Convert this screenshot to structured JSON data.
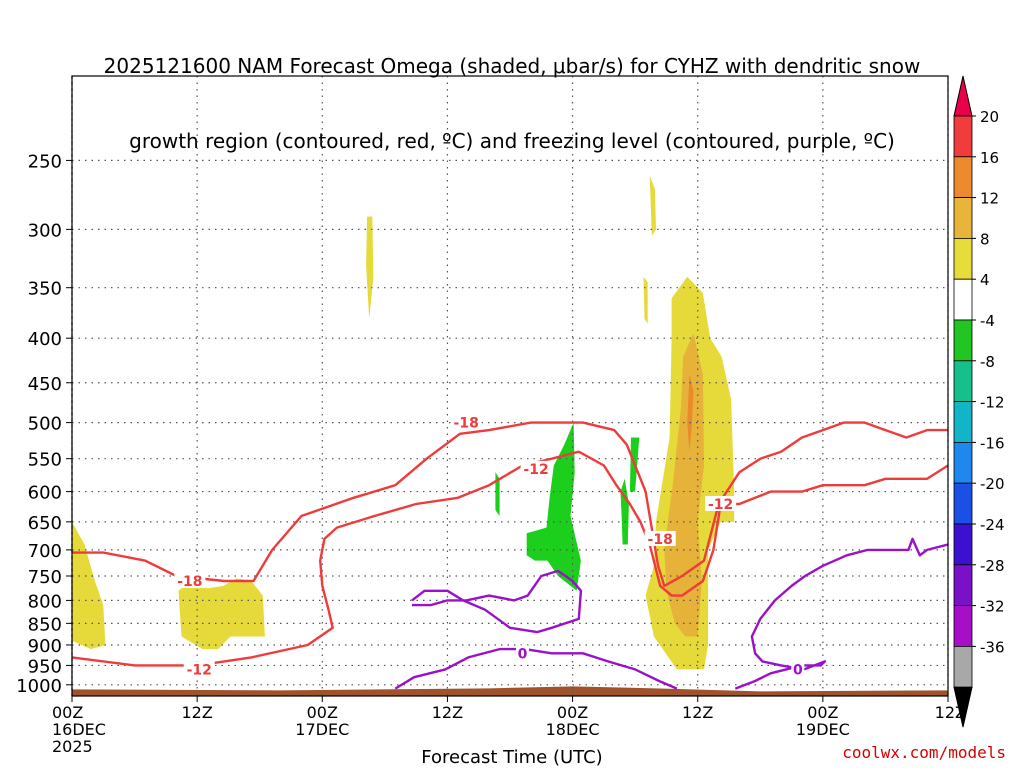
{
  "chart_data": {
    "type": "heatmap",
    "title_line1": "2025121600 NAM Forecast Omega (shaded, μbar/s) for CYHZ with dendritic snow",
    "title_line2": "growth region (contoured, red, ºC) and freezing level (contoured, purple, ºC)",
    "xlabel": "Forecast Time (UTC)",
    "ylabel": "",
    "credit": "coolwx.com/models",
    "x_ticks": [
      {
        "hour": 0,
        "line1": "00Z",
        "line2": "16DEC",
        "line3": "2025"
      },
      {
        "hour": 12,
        "line1": "12Z",
        "line2": "",
        "line3": ""
      },
      {
        "hour": 24,
        "line1": "00Z",
        "line2": "17DEC",
        "line3": ""
      },
      {
        "hour": 36,
        "line1": "12Z",
        "line2": "",
        "line3": ""
      },
      {
        "hour": 48,
        "line1": "00Z",
        "line2": "18DEC",
        "line3": ""
      },
      {
        "hour": 60,
        "line1": "12Z",
        "line2": "",
        "line3": ""
      },
      {
        "hour": 72,
        "line1": "00Z",
        "line2": "19DEC",
        "line3": ""
      },
      {
        "hour": 84,
        "line1": "12Z",
        "line2": "",
        "line3": ""
      }
    ],
    "xlim_hours": [
      0,
      84
    ],
    "y_ticks_hpa": [
      250,
      300,
      350,
      400,
      450,
      500,
      550,
      600,
      650,
      700,
      750,
      800,
      850,
      900,
      950,
      1000
    ],
    "ylim_hpa": [
      1030,
      200
    ],
    "y_scale": "log",
    "grid": true,
    "colorbar": {
      "levels": [
        "20",
        "16",
        "12",
        "8",
        "4",
        "-4",
        "-8",
        "-12",
        "-16",
        "-20",
        "-24",
        "-28",
        "-32",
        "-36"
      ],
      "colors": [
        "#e8004a",
        "#f03c3c",
        "#ee8a2e",
        "#e8b43a",
        "#e8dc3a",
        "#ffffff",
        "#22c622",
        "#16c08a",
        "#12b4c8",
        "#1e88ee",
        "#1a50e6",
        "#3c10d0",
        "#7a10c8",
        "#a70ec8",
        "#a8a8a8",
        "#000000"
      ]
    },
    "omega_shaded": [
      {
        "value_band": "4 to 8",
        "color": "#e6da3a",
        "polygon_hpa": [
          [
            0,
            650
          ],
          [
            1.2,
            690
          ],
          [
            2.2,
            760
          ],
          [
            3,
            810
          ],
          [
            3.2,
            900
          ],
          [
            1.8,
            910
          ],
          [
            0,
            890
          ]
        ]
      },
      {
        "value_band": "4 to 8",
        "color": "#e6da3a",
        "polygon_hpa": [
          [
            10.2,
            780
          ],
          [
            11.5,
            760
          ],
          [
            13,
            775
          ],
          [
            14.5,
            770
          ],
          [
            15.8,
            755
          ],
          [
            17.2,
            760
          ],
          [
            18.3,
            790
          ],
          [
            18.5,
            880
          ],
          [
            17.2,
            880
          ],
          [
            15.2,
            880
          ],
          [
            14,
            910
          ],
          [
            12.5,
            910
          ],
          [
            10.5,
            880
          ]
        ]
      },
      {
        "value_band": "4 to 8",
        "color": "#e6da3a",
        "polygon_hpa": [
          [
            28.3,
            290
          ],
          [
            28.8,
            290
          ],
          [
            28.9,
            340
          ],
          [
            28.5,
            380
          ],
          [
            28.2,
            330
          ]
        ]
      },
      {
        "value_band": "4 to 8",
        "color": "#e6da3a",
        "polygon_hpa": [
          [
            55.4,
            260
          ],
          [
            55.9,
            270
          ],
          [
            56,
            300
          ],
          [
            55.6,
            305
          ]
        ]
      },
      {
        "value_band": "4 to 8",
        "color": "#e6da3a",
        "polygon_hpa": [
          [
            54.8,
            340
          ],
          [
            55.2,
            345
          ],
          [
            55.2,
            385
          ],
          [
            54.9,
            380
          ]
        ]
      },
      {
        "value_band": "4 to 8",
        "color": "#e6da3a",
        "polygon_hpa": [
          [
            57.5,
            360
          ],
          [
            59,
            340
          ],
          [
            60.5,
            355
          ],
          [
            61.2,
            400
          ],
          [
            62.3,
            420
          ],
          [
            63.2,
            470
          ],
          [
            63.5,
            600
          ],
          [
            63.5,
            650
          ],
          [
            62.2,
            650
          ],
          [
            61,
            700
          ],
          [
            61,
            900
          ],
          [
            60.6,
            960
          ],
          [
            58,
            960
          ],
          [
            55.8,
            880
          ],
          [
            55,
            790
          ],
          [
            55.8,
            730
          ],
          [
            56,
            650
          ],
          [
            57.3,
            520
          ],
          [
            57.5,
            400
          ]
        ]
      },
      {
        "value_band": "8 to 12",
        "color": "#e7b23a",
        "polygon_hpa": [
          [
            58.6,
            420
          ],
          [
            59.6,
            395
          ],
          [
            60.5,
            440
          ],
          [
            60.6,
            560
          ],
          [
            60,
            650
          ],
          [
            60.4,
            760
          ],
          [
            60,
            880
          ],
          [
            58.8,
            880
          ],
          [
            57.8,
            850
          ],
          [
            57,
            780
          ],
          [
            56.8,
            700
          ],
          [
            57.2,
            640
          ],
          [
            57.6,
            590
          ],
          [
            58.4,
            480
          ]
        ]
      },
      {
        "value_band": "12 to 16",
        "color": "#ea8a2a",
        "polygon_hpa": [
          [
            59.2,
            440
          ],
          [
            59.6,
            460
          ],
          [
            59.4,
            510
          ],
          [
            59.2,
            540
          ],
          [
            59,
            500
          ]
        ]
      },
      {
        "value_band": "-4 to -8",
        "color": "#1ccf1c",
        "polygon_hpa": [
          [
            48.1,
            500
          ],
          [
            48.2,
            570
          ],
          [
            47.8,
            640
          ],
          [
            48.8,
            720
          ],
          [
            48.4,
            780
          ],
          [
            46.6,
            750
          ],
          [
            45.6,
            720
          ],
          [
            44.4,
            720
          ],
          [
            43.6,
            710
          ],
          [
            43.6,
            670
          ],
          [
            45.5,
            660
          ],
          [
            45.8,
            610
          ],
          [
            46.2,
            560
          ],
          [
            47.2,
            530
          ]
        ]
      },
      {
        "value_band": "-4 to -8",
        "color": "#1ccf1c",
        "polygon_hpa": [
          [
            40.6,
            570
          ],
          [
            41,
            580
          ],
          [
            41,
            640
          ],
          [
            40.6,
            630
          ]
        ]
      },
      {
        "value_band": "-4 to -8",
        "color": "#1ccf1c",
        "polygon_hpa": [
          [
            52.6,
            600
          ],
          [
            53,
            580
          ],
          [
            53.4,
            620
          ],
          [
            53.3,
            690
          ],
          [
            52.8,
            690
          ],
          [
            52.7,
            640
          ]
        ]
      },
      {
        "value_band": "-4 to -8",
        "color": "#1ccf1c",
        "polygon_hpa": [
          [
            53.6,
            520
          ],
          [
            54.4,
            520
          ],
          [
            54,
            600
          ],
          [
            53.5,
            600
          ]
        ]
      }
    ],
    "dgz_contours_red_C": [
      {
        "label": "-18",
        "label_at": [
          37.6,
          500
        ],
        "points_hpa": [
          [
            84,
            510
          ],
          [
            82,
            510
          ],
          [
            80,
            520
          ],
          [
            78,
            510
          ],
          [
            76,
            500
          ],
          [
            74,
            500
          ],
          [
            72,
            510
          ],
          [
            70,
            520
          ],
          [
            68,
            540
          ],
          [
            66,
            550
          ],
          [
            64,
            570
          ],
          [
            62,
            620
          ],
          [
            60.6,
            720
          ],
          [
            58.5,
            750
          ],
          [
            56.8,
            770
          ],
          [
            56.2,
            730
          ],
          [
            55,
            600
          ],
          [
            53.2,
            530
          ],
          [
            52,
            510
          ],
          [
            49,
            500
          ],
          [
            46.6,
            500
          ],
          [
            44,
            500
          ],
          [
            40,
            510
          ],
          [
            37.2,
            515
          ],
          [
            34,
            550
          ],
          [
            31,
            590
          ],
          [
            27,
            610
          ],
          [
            22,
            640
          ],
          [
            19.2,
            700
          ],
          [
            17.4,
            760
          ],
          [
            14.6,
            760
          ],
          [
            10,
            750
          ],
          [
            7,
            720
          ],
          [
            3,
            705
          ],
          [
            0,
            705
          ]
        ]
      },
      {
        "label": "-12",
        "label_at": [
          44.5,
          565
        ],
        "points_hpa": [
          [
            84,
            560
          ],
          [
            82,
            580
          ],
          [
            80,
            580
          ],
          [
            78,
            580
          ],
          [
            76,
            590
          ],
          [
            74,
            590
          ],
          [
            72,
            590
          ],
          [
            70,
            600
          ],
          [
            67,
            600
          ],
          [
            65.5,
            610
          ],
          [
            64,
            620
          ],
          [
            62.2,
            620
          ],
          [
            61.5,
            700
          ],
          [
            60.5,
            760
          ],
          [
            58.5,
            790
          ],
          [
            57.5,
            790
          ],
          [
            56.4,
            770
          ],
          [
            55.4,
            690
          ],
          [
            54.5,
            650
          ],
          [
            53.5,
            620
          ],
          [
            52.2,
            590
          ],
          [
            51,
            560
          ],
          [
            48.6,
            540
          ],
          [
            46,
            550
          ],
          [
            43.2,
            560
          ],
          [
            40,
            590
          ],
          [
            37,
            610
          ],
          [
            33,
            620
          ],
          [
            29,
            640
          ],
          [
            25.4,
            660
          ],
          [
            24.2,
            680
          ],
          [
            23.8,
            720
          ],
          [
            24,
            770
          ],
          [
            24.6,
            820
          ],
          [
            25,
            860
          ],
          [
            22.6,
            900
          ],
          [
            17.2,
            930
          ],
          [
            12,
            950
          ],
          [
            6,
            950
          ],
          [
            0,
            930
          ]
        ]
      }
    ],
    "dgz_label_positions": [
      {
        "label": "-18",
        "at": [
          11.3,
          760
        ]
      },
      {
        "label": "-18",
        "at": [
          37.8,
          500
        ]
      },
      {
        "label": "-12",
        "at": [
          44.5,
          565
        ]
      },
      {
        "label": "-18",
        "at": [
          56.4,
          680
        ]
      },
      {
        "label": "-12",
        "at": [
          62.2,
          620
        ]
      },
      {
        "label": "-12",
        "at": [
          12.2,
          960
        ]
      }
    ],
    "freezing_contours_purple_C": [
      {
        "label": "0",
        "points_hpa": [
          [
            31,
            1010
          ],
          [
            32.8,
            980
          ],
          [
            35.8,
            960
          ],
          [
            38,
            930
          ],
          [
            41,
            910
          ],
          [
            43.4,
            910
          ],
          [
            46,
            920
          ],
          [
            49,
            920
          ],
          [
            51.4,
            940
          ],
          [
            54,
            960
          ],
          [
            56.3,
            990
          ],
          [
            58,
            1010
          ]
        ]
      },
      {
        "label": "0",
        "points_hpa": [
          [
            32.6,
            800
          ],
          [
            33.8,
            780
          ],
          [
            36,
            780
          ],
          [
            37.5,
            800
          ],
          [
            39.6,
            820
          ],
          [
            42,
            860
          ],
          [
            44.6,
            870
          ],
          [
            46,
            860
          ],
          [
            48.6,
            840
          ],
          [
            48.8,
            780
          ],
          [
            48,
            760
          ],
          [
            46.6,
            740
          ],
          [
            45,
            750
          ],
          [
            43.7,
            790
          ],
          [
            42.4,
            800
          ],
          [
            40,
            790
          ],
          [
            37.8,
            800
          ],
          [
            36,
            800
          ],
          [
            34.4,
            810
          ],
          [
            32.6,
            810
          ]
        ]
      },
      {
        "label": "0",
        "points_hpa": [
          [
            63.6,
            1010
          ],
          [
            65.5,
            990
          ],
          [
            67,
            970
          ],
          [
            70,
            950
          ],
          [
            71.8,
            950
          ],
          [
            72.2,
            940
          ],
          [
            70.2,
            960
          ],
          [
            68,
            950
          ],
          [
            66.2,
            940
          ],
          [
            65.5,
            920
          ],
          [
            65.2,
            880
          ],
          [
            66,
            840
          ],
          [
            67.4,
            800
          ],
          [
            69,
            770
          ],
          [
            70.3,
            750
          ],
          [
            72,
            730
          ],
          [
            74.3,
            710
          ],
          [
            76.3,
            700
          ],
          [
            78,
            700
          ],
          [
            80.2,
            700
          ],
          [
            80.6,
            680
          ],
          [
            81.3,
            710
          ],
          [
            82,
            700
          ],
          [
            84,
            690
          ]
        ]
      }
    ],
    "freezing_labels": [
      {
        "label": "0",
        "at": [
          43.2,
          920
        ]
      },
      {
        "label": "0",
        "at": [
          69.6,
          960
        ]
      }
    ]
  }
}
